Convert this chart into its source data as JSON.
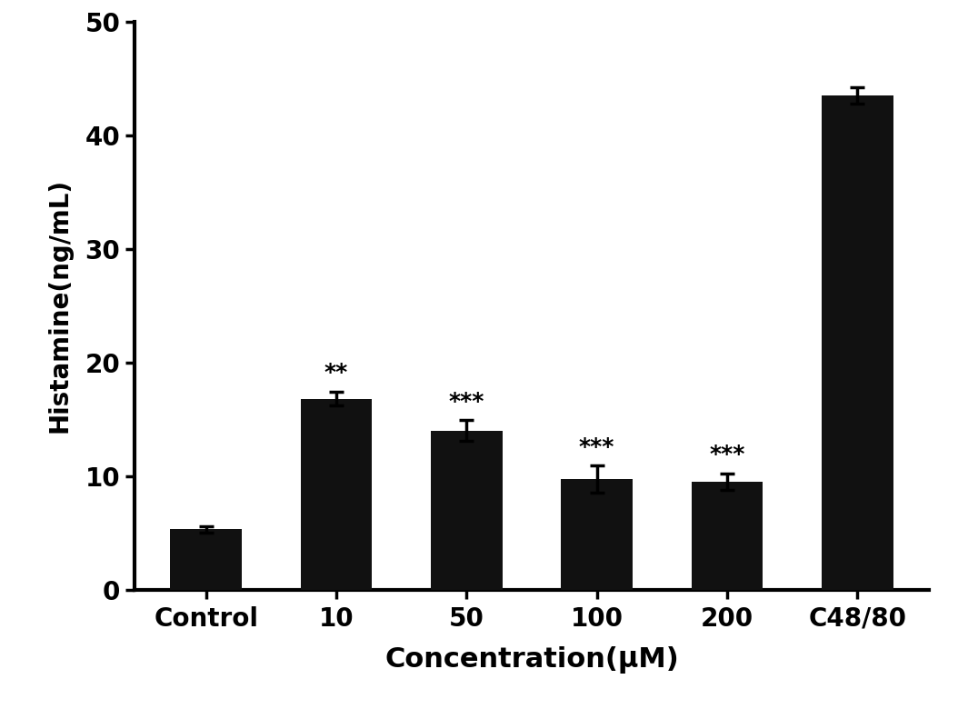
{
  "categories": [
    "Control",
    "10",
    "50",
    "100",
    "200",
    "C48/80"
  ],
  "values": [
    5.3,
    16.8,
    14.0,
    9.7,
    9.5,
    43.5
  ],
  "errors": [
    0.3,
    0.6,
    0.9,
    1.2,
    0.7,
    0.7
  ],
  "annotations": [
    "",
    "**",
    "***",
    "***",
    "***",
    ""
  ],
  "bar_color": "#111111",
  "ylabel": "Histamine(ng/mL)",
  "xlabel": "Concentration(μM)",
  "ylim": [
    0,
    50
  ],
  "yticks": [
    0,
    10,
    20,
    30,
    40,
    50
  ],
  "background_color": "#ffffff",
  "ylabel_fontsize": 20,
  "xlabel_fontsize": 22,
  "tick_fontsize": 20,
  "annotation_fontsize": 18,
  "bar_width": 0.55,
  "capsize": 6,
  "elinewidth": 2.5,
  "capthick": 2.5,
  "spine_linewidth": 3.0
}
